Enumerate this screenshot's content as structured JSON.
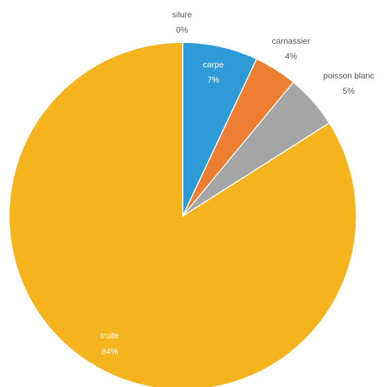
{
  "chart_data": {
    "type": "pie",
    "start_angle_deg": 0,
    "direction": "clockwise",
    "slices": [
      {
        "name": "silure",
        "value": 0,
        "label": "0%",
        "color": "#2e75b6"
      },
      {
        "name": "carpe",
        "value": 7,
        "label": "7%",
        "color": "#2e9bd6"
      },
      {
        "name": "carnassier",
        "value": 4,
        "label": "4%",
        "color": "#ed7d31"
      },
      {
        "name": "poisson blanc",
        "value": 5,
        "label": "5%",
        "color": "#a5a5a5"
      },
      {
        "name": "truite",
        "value": 84,
        "label": "84%",
        "color": "#f5b41e"
      }
    ]
  }
}
